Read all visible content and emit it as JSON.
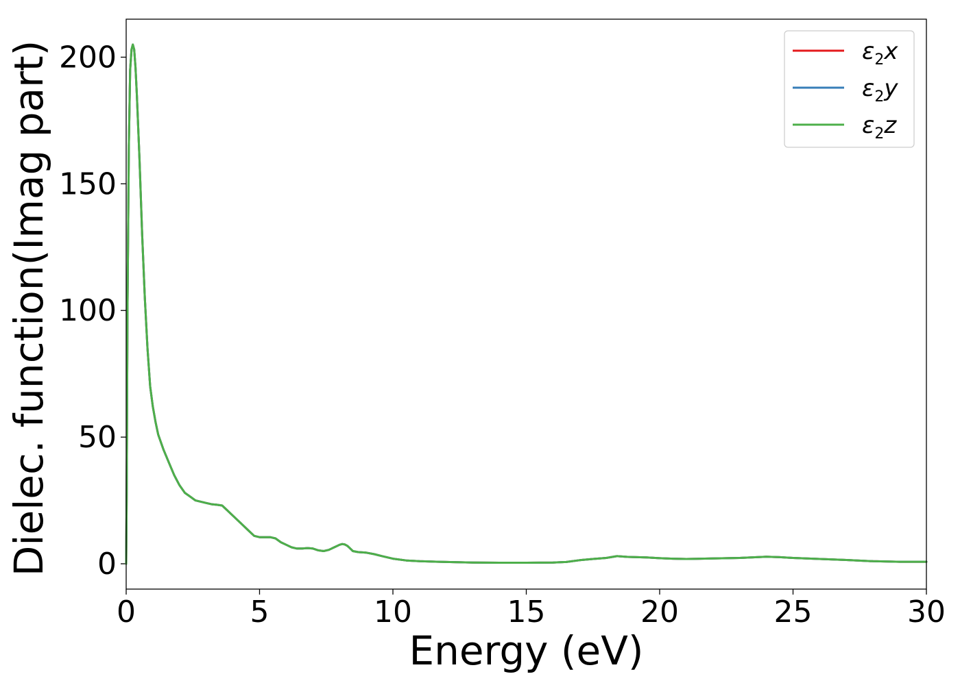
{
  "chart_data": {
    "type": "line",
    "xlabel": "Energy (eV)",
    "ylabel": "Dielec. function(Imag part)",
    "xlim": [
      0,
      30
    ],
    "ylim": [
      -10,
      215
    ],
    "xticks": [
      0,
      5,
      10,
      15,
      20,
      25,
      30
    ],
    "yticks": [
      0,
      50,
      100,
      150,
      200
    ],
    "xtick_labels": [
      "0",
      "5",
      "10",
      "15",
      "20",
      "25",
      "30"
    ],
    "ytick_labels": [
      "0",
      "50",
      "100",
      "150",
      "200"
    ],
    "grid": false,
    "legend": {
      "position": "top-right"
    },
    "series": [
      {
        "name": "ε2x",
        "legend_base": "ε",
        "legend_sub": "2",
        "legend_suffix": "x",
        "color": "#e41a1c",
        "ref": "shared"
      },
      {
        "name": "ε2y",
        "legend_base": "ε",
        "legend_sub": "2",
        "legend_suffix": "y",
        "color": "#377eb8",
        "ref": "shared"
      },
      {
        "name": "ε2z",
        "legend_base": "ε",
        "legend_sub": "2",
        "legend_suffix": "z",
        "color": "#4daf4a",
        "ref": "shared"
      }
    ],
    "x": [
      0,
      0.02,
      0.05,
      0.1,
      0.15,
      0.2,
      0.25,
      0.3,
      0.35,
      0.4,
      0.5,
      0.6,
      0.7,
      0.8,
      0.9,
      1.0,
      1.1,
      1.2,
      1.4,
      1.6,
      1.8,
      2.0,
      2.2,
      2.4,
      2.6,
      2.8,
      3.0,
      3.2,
      3.4,
      3.6,
      3.8,
      4.0,
      4.2,
      4.4,
      4.6,
      4.8,
      5.0,
      5.2,
      5.4,
      5.6,
      5.8,
      6.0,
      6.2,
      6.4,
      6.6,
      6.8,
      7.0,
      7.2,
      7.4,
      7.6,
      7.8,
      8.0,
      8.1,
      8.2,
      8.3,
      8.4,
      8.5,
      8.7,
      9.0,
      9.3,
      9.6,
      10.0,
      10.5,
      11.0,
      12.0,
      13.0,
      14.0,
      15.0,
      16.0,
      16.5,
      17.0,
      17.5,
      18.0,
      18.4,
      18.8,
      19.5,
      20.0,
      20.5,
      21.0,
      22.0,
      23.0,
      24.0,
      24.5,
      25.0,
      26.0,
      27.0,
      28.0,
      29.0,
      30.0
    ],
    "y": [
      0,
      30,
      100,
      165,
      195,
      203,
      205,
      203,
      196,
      185,
      160,
      130,
      105,
      85,
      70,
      62,
      56,
      51,
      45,
      40,
      35,
      31,
      28,
      26.5,
      25,
      24.5,
      24,
      23.5,
      23.3,
      23,
      21,
      19,
      17,
      15,
      13,
      11,
      10.5,
      10.5,
      10.5,
      10,
      8.5,
      7.5,
      6.5,
      6,
      6,
      6.2,
      6,
      5.3,
      5,
      5.5,
      6.5,
      7.5,
      7.8,
      7.6,
      7,
      6,
      5,
      4.6,
      4.4,
      3.8,
      3,
      2,
      1.3,
      1,
      0.7,
      0.5,
      0.4,
      0.4,
      0.5,
      0.7,
      1.4,
      1.9,
      2.3,
      3,
      2.7,
      2.5,
      2.2,
      2,
      1.9,
      2.1,
      2.3,
      2.8,
      2.6,
      2.3,
      1.9,
      1.5,
      1.0,
      0.8,
      0.8
    ]
  }
}
